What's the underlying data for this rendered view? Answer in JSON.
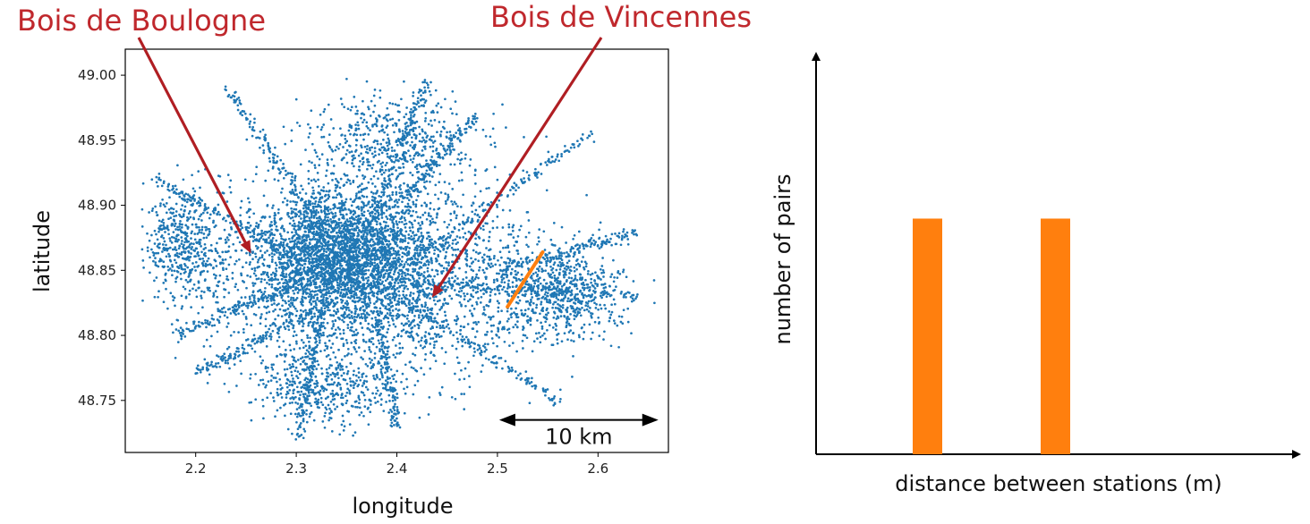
{
  "colors": {
    "points": "#1f77b4",
    "highlight": "#ff7f0e",
    "annotation": "#c0282d",
    "arrow_fill": "#b01e23",
    "axis": "#000000"
  },
  "chart_data": [
    {
      "type": "scatter",
      "xlabel": "longitude",
      "ylabel": "latitude",
      "xlim": [
        2.13,
        2.67
      ],
      "ylim": [
        48.71,
        49.02
      ],
      "xticks": [
        "2.2",
        "2.3",
        "2.4",
        "2.5",
        "2.6"
      ],
      "xtick_values": [
        2.2,
        2.3,
        2.4,
        2.5,
        2.6
      ],
      "yticks": [
        "48.75",
        "48.80",
        "48.85",
        "48.90",
        "48.95",
        "49.00"
      ],
      "ytick_values": [
        48.75,
        48.8,
        48.85,
        48.9,
        48.95,
        49.0
      ],
      "grid": false,
      "description_points": "dense cloud of bus/metro station locations centered near (2.35, 48.86), spanning roughly longitude 2.15–2.65 and latitude 48.72–49.00",
      "highlight_segment": {
        "x": [
          2.51,
          2.545
        ],
        "y": [
          48.822,
          48.864
        ]
      },
      "annotations": [
        {
          "text": "Bois de Boulogne",
          "points_to": {
            "x": 2.255,
            "y": 48.863
          }
        },
        {
          "text": "Bois de Vincennes",
          "points_to": {
            "x": 2.435,
            "y": 48.829
          }
        }
      ],
      "scale_bar": {
        "label": "10 km",
        "x": [
          2.5,
          2.66
        ],
        "y": 48.735
      }
    },
    {
      "type": "bar",
      "xlabel": "distance between stations (m)",
      "ylabel": "number of pairs",
      "values": [
        1,
        1
      ],
      "ylim": [
        0,
        1.7
      ],
      "grid": false
    }
  ]
}
